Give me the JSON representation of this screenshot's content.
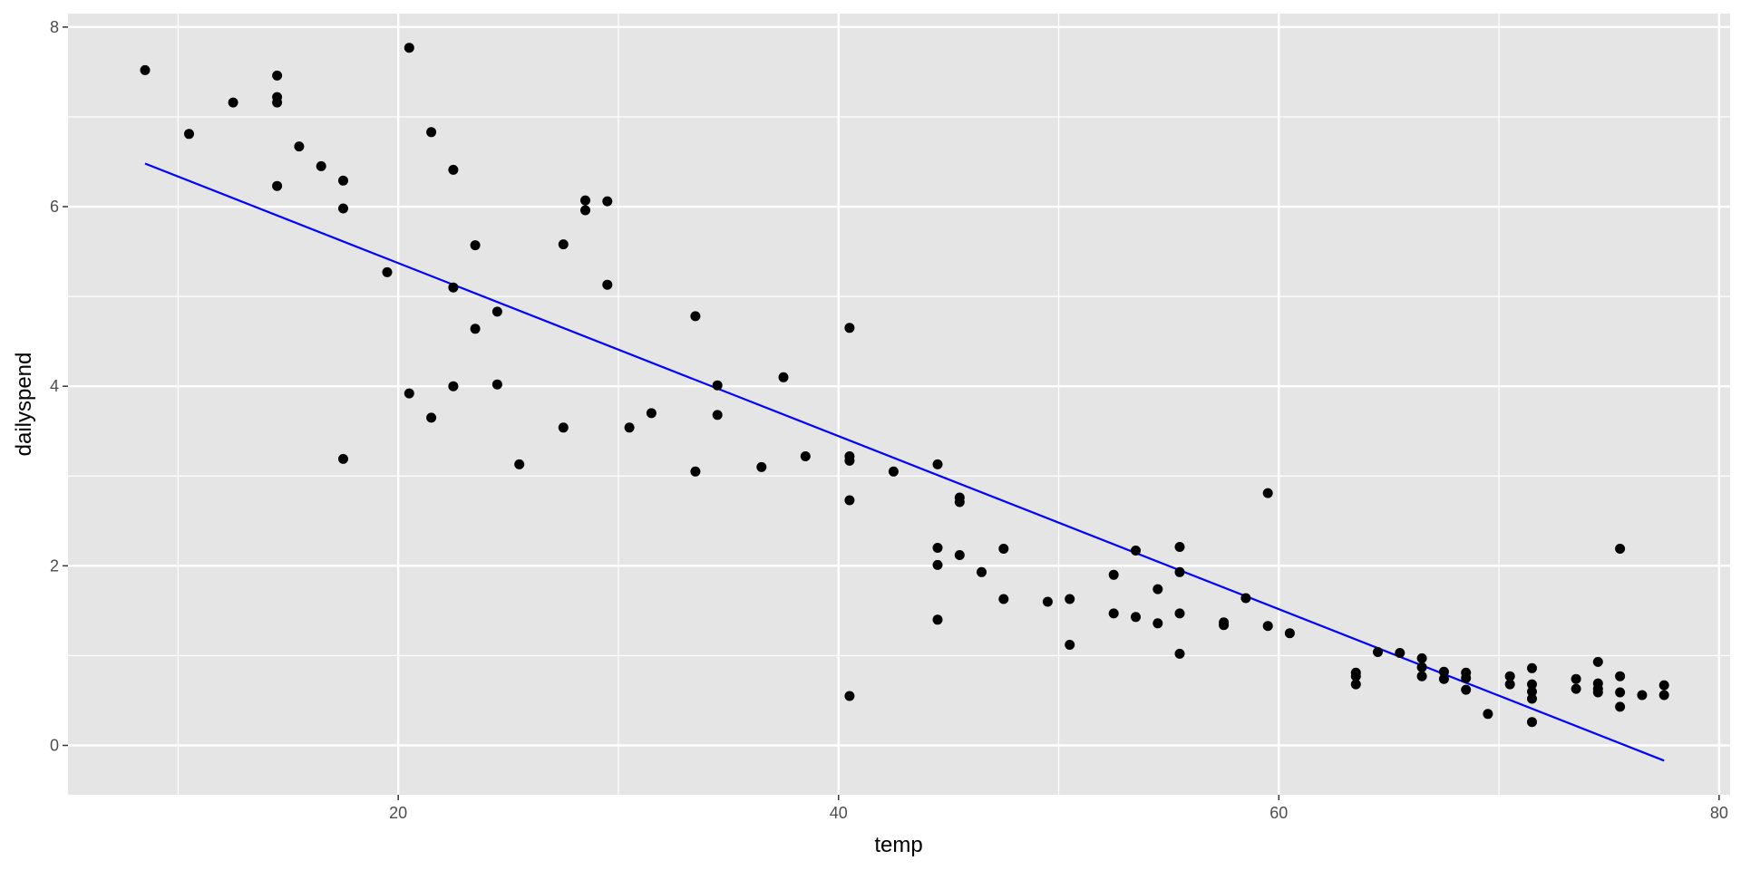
{
  "chart_data": {
    "type": "scatter",
    "title": "",
    "xlabel": "temp",
    "ylabel": "dailyspend",
    "xlim": [
      5,
      80.5
    ],
    "ylim": [
      -0.55,
      8.15
    ],
    "x_ticks": [
      20,
      40,
      60,
      80
    ],
    "y_ticks": [
      0,
      2,
      4,
      6,
      8
    ],
    "grid": true,
    "panel_background": "#e5e5e5",
    "grid_color": "#ffffff",
    "point_color": "#000000",
    "line_color": "#0000ff",
    "series": [
      {
        "type": "scatter",
        "points": [
          [
            8.5,
            7.52
          ],
          [
            10.5,
            6.81
          ],
          [
            12.5,
            7.16
          ],
          [
            14.5,
            7.46
          ],
          [
            14.5,
            7.22
          ],
          [
            14.5,
            7.16
          ],
          [
            14.5,
            6.23
          ],
          [
            15.5,
            6.67
          ],
          [
            16.5,
            6.45
          ],
          [
            17.5,
            6.29
          ],
          [
            17.5,
            5.98
          ],
          [
            17.5,
            3.19
          ],
          [
            19.5,
            5.27
          ],
          [
            20.5,
            7.77
          ],
          [
            20.5,
            3.92
          ],
          [
            21.5,
            6.83
          ],
          [
            21.5,
            3.65
          ],
          [
            22.5,
            6.41
          ],
          [
            22.5,
            5.1
          ],
          [
            22.5,
            4.0
          ],
          [
            23.5,
            5.57
          ],
          [
            23.5,
            4.64
          ],
          [
            24.5,
            4.83
          ],
          [
            24.5,
            4.02
          ],
          [
            25.5,
            3.13
          ],
          [
            27.5,
            5.58
          ],
          [
            27.5,
            3.54
          ],
          [
            28.5,
            6.07
          ],
          [
            28.5,
            5.96
          ],
          [
            29.5,
            6.06
          ],
          [
            29.5,
            5.13
          ],
          [
            30.5,
            3.54
          ],
          [
            31.5,
            3.7
          ],
          [
            33.5,
            4.78
          ],
          [
            33.5,
            3.05
          ],
          [
            34.5,
            4.01
          ],
          [
            34.5,
            3.68
          ],
          [
            36.5,
            3.1
          ],
          [
            37.5,
            4.1
          ],
          [
            38.5,
            3.22
          ],
          [
            40.5,
            4.65
          ],
          [
            40.5,
            3.22
          ],
          [
            40.5,
            3.17
          ],
          [
            40.5,
            2.73
          ],
          [
            40.5,
            0.55
          ],
          [
            42.5,
            3.05
          ],
          [
            44.5,
            3.13
          ],
          [
            44.5,
            2.2
          ],
          [
            44.5,
            2.01
          ],
          [
            44.5,
            1.4
          ],
          [
            45.5,
            2.76
          ],
          [
            45.5,
            2.71
          ],
          [
            45.5,
            2.12
          ],
          [
            46.5,
            1.93
          ],
          [
            47.5,
            2.19
          ],
          [
            47.5,
            1.63
          ],
          [
            49.5,
            1.6
          ],
          [
            50.5,
            1.63
          ],
          [
            50.5,
            1.12
          ],
          [
            52.5,
            1.9
          ],
          [
            52.5,
            1.47
          ],
          [
            53.5,
            2.17
          ],
          [
            53.5,
            1.43
          ],
          [
            54.5,
            1.74
          ],
          [
            54.5,
            1.36
          ],
          [
            55.5,
            2.21
          ],
          [
            55.5,
            1.93
          ],
          [
            55.5,
            1.47
          ],
          [
            55.5,
            1.02
          ],
          [
            57.5,
            1.37
          ],
          [
            57.5,
            1.34
          ],
          [
            58.5,
            1.64
          ],
          [
            59.5,
            2.81
          ],
          [
            59.5,
            1.33
          ],
          [
            60.5,
            1.25
          ],
          [
            63.5,
            0.81
          ],
          [
            63.5,
            0.77
          ],
          [
            63.5,
            0.68
          ],
          [
            64.5,
            1.04
          ],
          [
            65.5,
            1.03
          ],
          [
            66.5,
            0.97
          ],
          [
            66.5,
            0.87
          ],
          [
            66.5,
            0.77
          ],
          [
            67.5,
            0.82
          ],
          [
            67.5,
            0.74
          ],
          [
            68.5,
            0.81
          ],
          [
            68.5,
            0.75
          ],
          [
            68.5,
            0.62
          ],
          [
            69.5,
            0.35
          ],
          [
            70.5,
            0.77
          ],
          [
            70.5,
            0.68
          ],
          [
            71.5,
            0.86
          ],
          [
            71.5,
            0.68
          ],
          [
            71.5,
            0.6
          ],
          [
            71.5,
            0.52
          ],
          [
            71.5,
            0.26
          ],
          [
            73.5,
            0.74
          ],
          [
            73.5,
            0.63
          ],
          [
            74.5,
            0.93
          ],
          [
            74.5,
            0.69
          ],
          [
            74.5,
            0.63
          ],
          [
            74.5,
            0.59
          ],
          [
            75.5,
            2.19
          ],
          [
            75.5,
            0.77
          ],
          [
            75.5,
            0.59
          ],
          [
            75.5,
            0.43
          ],
          [
            76.5,
            0.56
          ],
          [
            77.5,
            0.67
          ],
          [
            77.5,
            0.56
          ]
        ]
      },
      {
        "type": "line",
        "points": [
          [
            8.5,
            6.48
          ],
          [
            77.5,
            -0.17
          ]
        ]
      }
    ]
  }
}
